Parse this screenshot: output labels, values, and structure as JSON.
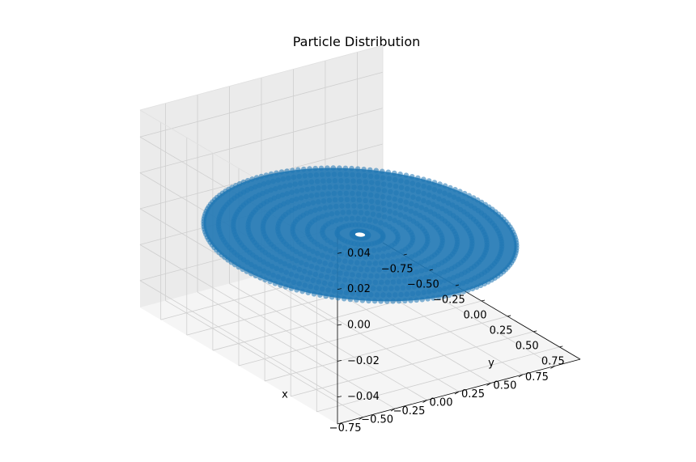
{
  "chart_data": {
    "type": "scatter",
    "projection": "3d",
    "title": "Particle Distribution",
    "xlabel": "x",
    "ylabel": "y",
    "zlabel": "",
    "xticks": [
      "−0.75",
      "−0.50",
      "−0.25",
      "0.00",
      "0.25",
      "0.50",
      "0.75"
    ],
    "yticks": [
      "−0.75",
      "−0.50",
      "−0.25",
      "0.00",
      "0.25",
      "0.50",
      "0.75"
    ],
    "zticks": [
      "−0.04",
      "−0.02",
      "0.00",
      "0.02",
      "0.04"
    ],
    "xlim": [
      -0.95,
      0.95
    ],
    "ylim": [
      -0.95,
      0.95
    ],
    "zlim": [
      -0.055,
      0.055
    ],
    "grid": true,
    "series": [
      {
        "color": "#1f77b4",
        "description_values": {
          "r_min": 0.05,
          "r_max": 0.95,
          "z": 0.0
        }
      }
    ]
  }
}
